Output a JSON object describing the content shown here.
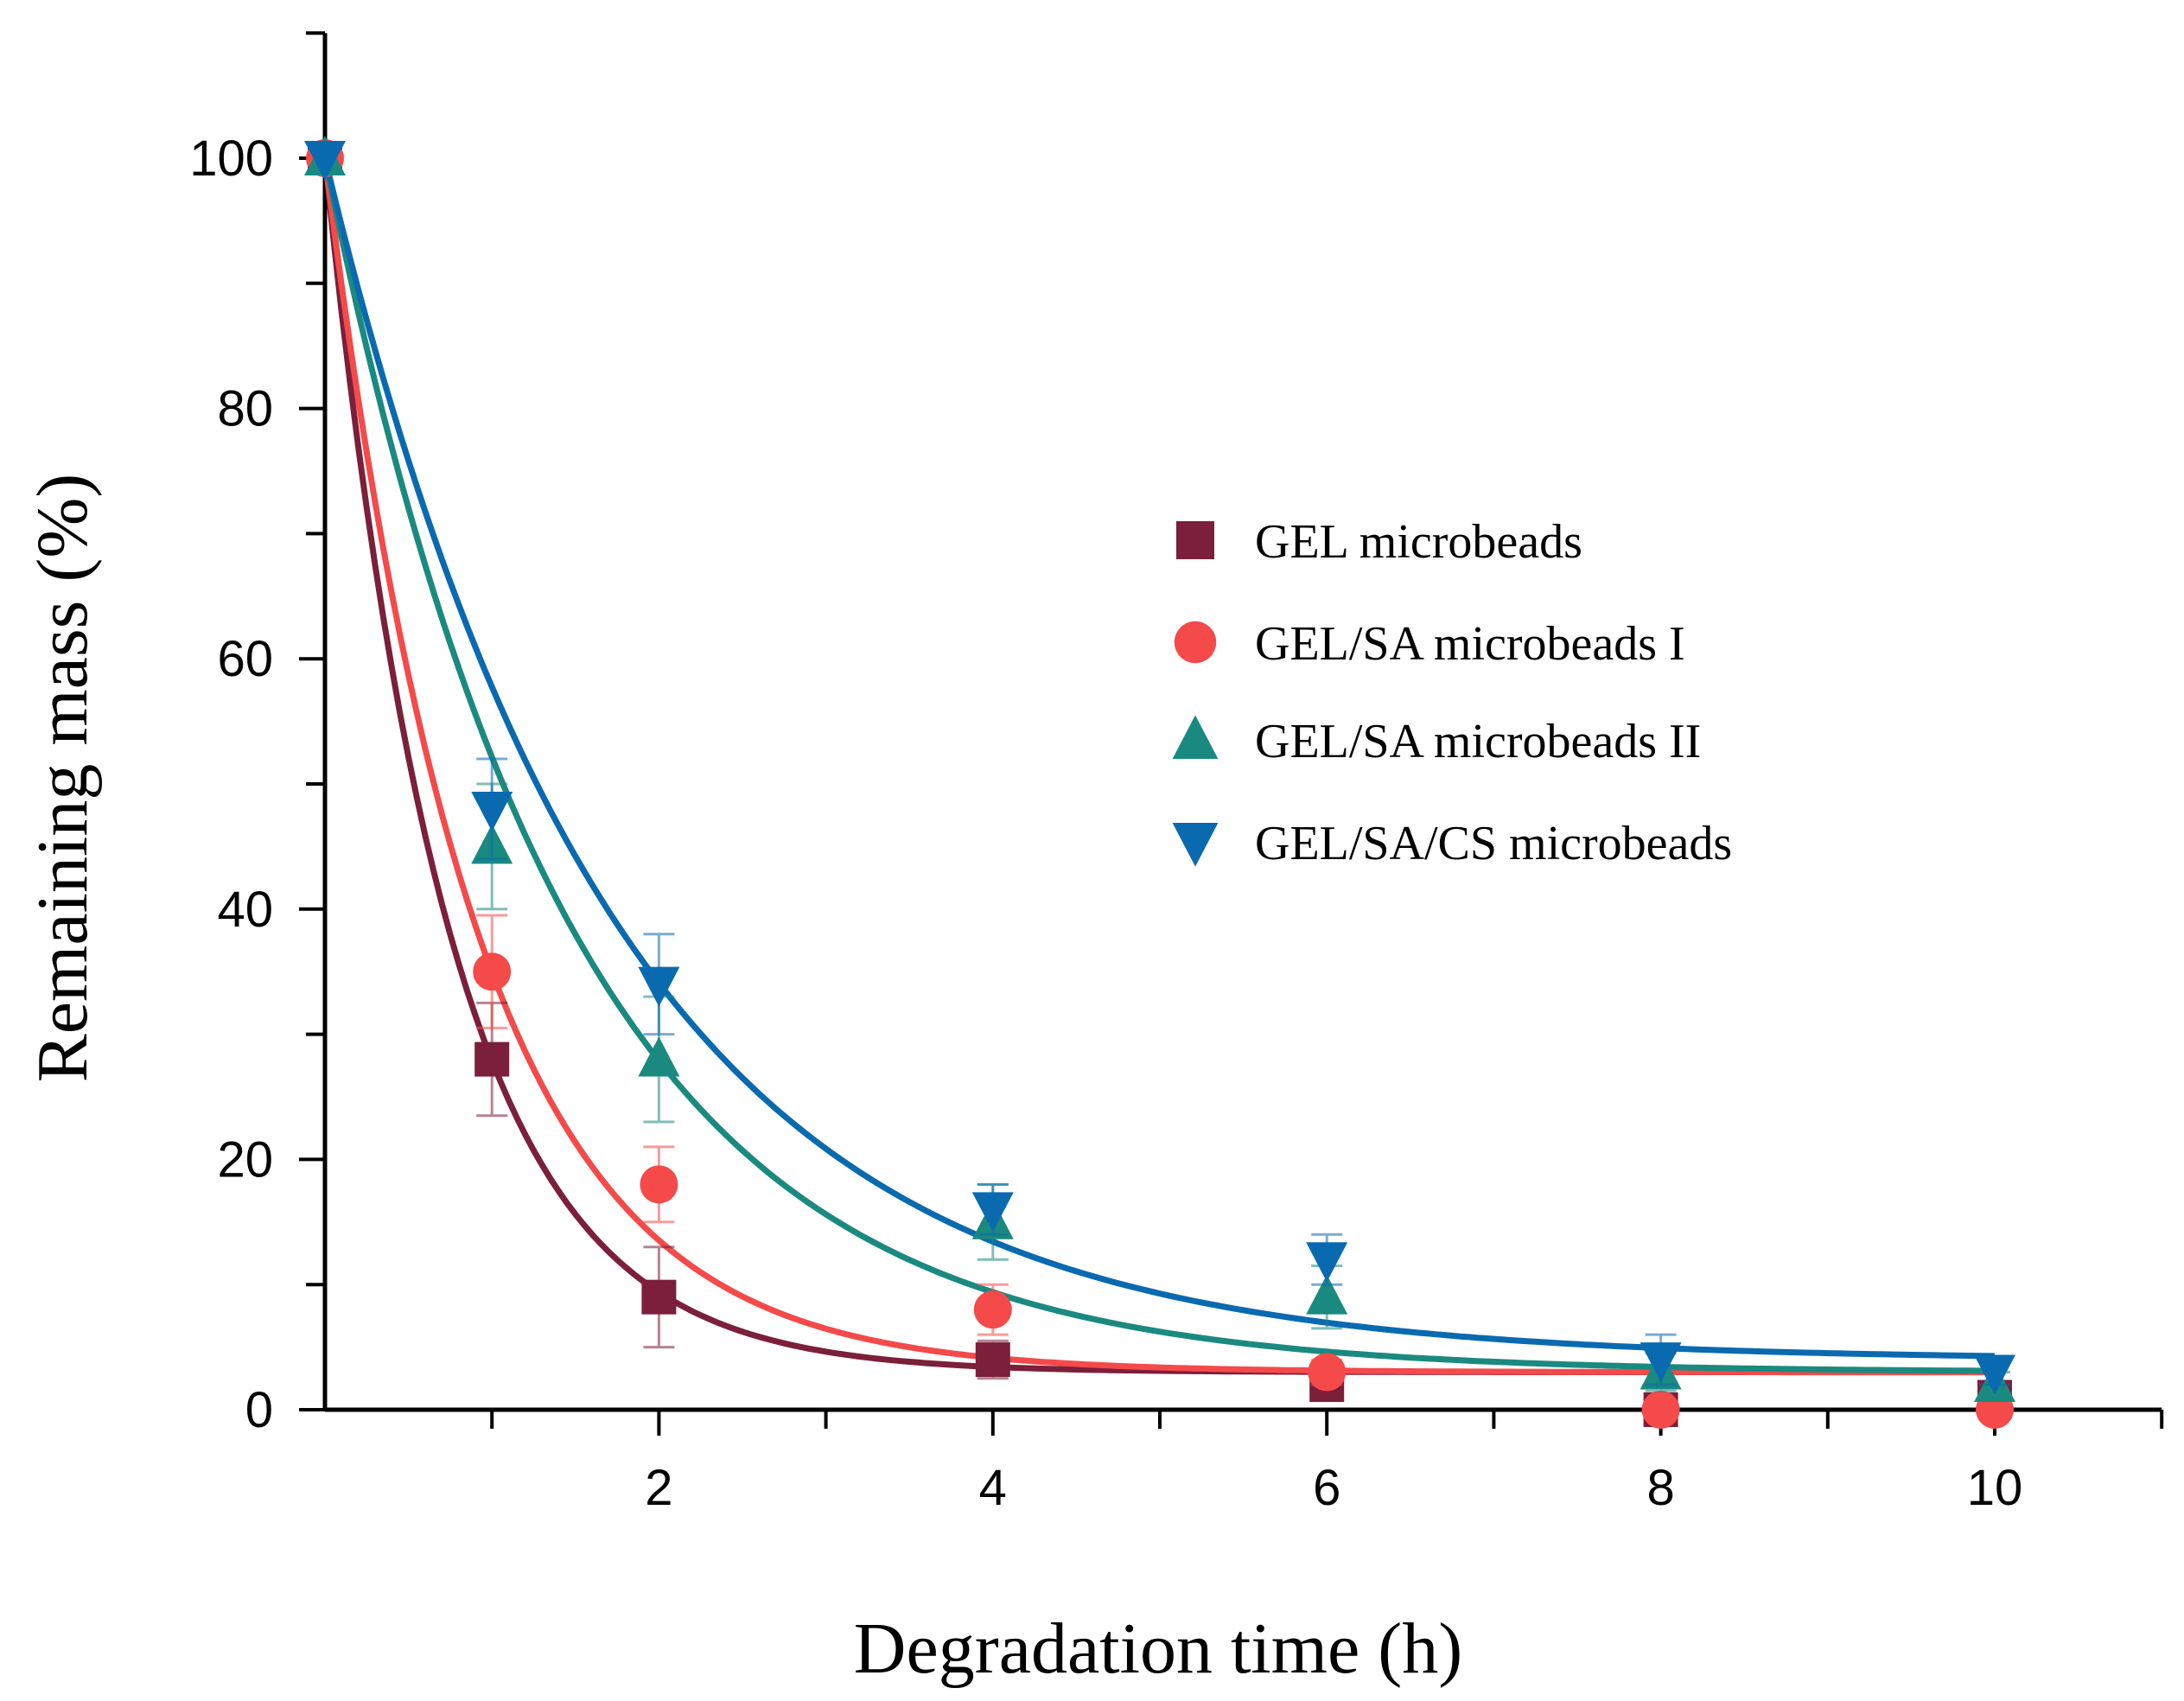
{
  "chart_data": {
    "type": "scatter",
    "title": "",
    "xlabel": "Degradation time (h)",
    "ylabel": "Remaining mass (%)",
    "xlim": [
      0,
      11
    ],
    "ylim": [
      0,
      110
    ],
    "xticks": [
      2,
      4,
      6,
      8,
      10
    ],
    "yticks": [
      0,
      20,
      40,
      60,
      80,
      100
    ],
    "grid": false,
    "legend_position": "center-right",
    "x": [
      0,
      1,
      2,
      4,
      6,
      8,
      10
    ],
    "series": [
      {
        "name": "GEL microbeads",
        "marker": "square",
        "color": "#7b1f3a",
        "values": [
          100,
          28,
          9,
          4,
          2,
          0,
          1
        ],
        "errors": [
          0,
          4.5,
          4,
          1.5,
          1,
          0.5,
          0.5
        ],
        "fit": {
          "model": "exponential decay",
          "y0": 3,
          "A": 97,
          "k": 1.36
        }
      },
      {
        "name": "GEL/SA microbeads I",
        "marker": "circle",
        "color": "#f44a4a",
        "values": [
          100,
          35,
          18,
          8,
          3,
          0,
          0
        ],
        "errors": [
          0,
          4.5,
          3,
          2,
          1,
          0.5,
          0.5
        ],
        "fit": {
          "model": "exponential decay",
          "y0": 3,
          "A": 97,
          "k": 1.11
        }
      },
      {
        "name": "GEL/SA microbeads II",
        "marker": "triangle-up",
        "color": "#1a8a80",
        "values": [
          100,
          45,
          28,
          15,
          9,
          3,
          2
        ],
        "errors": [
          0,
          5,
          5,
          3,
          2.5,
          1.5,
          1
        ],
        "fit": {
          "model": "exponential decay",
          "y0": 3,
          "A": 97,
          "k": 0.68
        }
      },
      {
        "name": "GEL/SA/CS microbeads",
        "marker": "triangle-down",
        "color": "#0a6ab0",
        "values": [
          100,
          48,
          34,
          16,
          12,
          4,
          3
        ],
        "errors": [
          0,
          4,
          4,
          2,
          2,
          2,
          1
        ],
        "fit": {
          "model": "exponential decay",
          "y0": 4,
          "A": 96,
          "k": 0.58
        }
      }
    ]
  }
}
